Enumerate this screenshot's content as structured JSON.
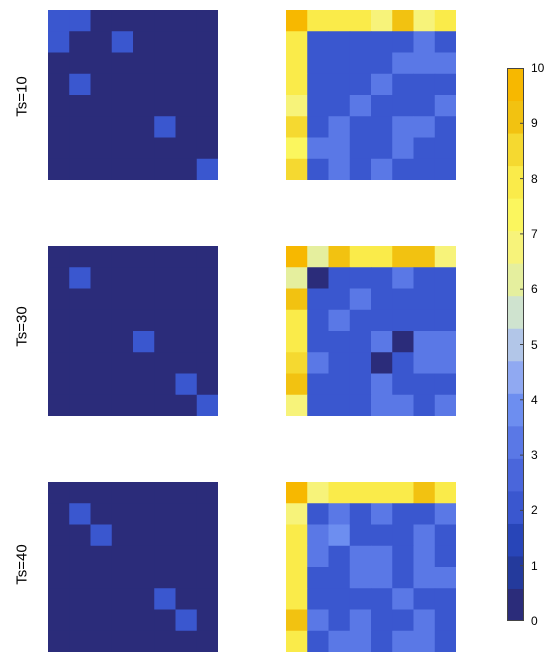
{
  "colors": {
    "scale": [
      "#2b2c7a",
      "#243a9c",
      "#2845b8",
      "#3a57cf",
      "#4a66db",
      "#5a78e6",
      "#6d8ef0",
      "#90a9f2",
      "#b2c6e8",
      "#cfe3cf",
      "#e5ef9e",
      "#f7f37a",
      "#fbf65e",
      "#faeb4a",
      "#f5d930",
      "#f2c211",
      "#f7b800"
    ]
  },
  "chart_data": {
    "type": "heatmap",
    "value_range": [
      0,
      10
    ],
    "colorbar_ticks": [
      "0",
      "1",
      "2",
      "3",
      "4",
      "5",
      "6",
      "7",
      "8",
      "9",
      "10"
    ],
    "row_labels": [
      "Ts=10",
      "Ts=30",
      "Ts=40"
    ],
    "panels": [
      {
        "row": 0,
        "col": 0,
        "values": [
          [
            1.8,
            1.8,
            0,
            0,
            0,
            0,
            0,
            0
          ],
          [
            1.8,
            0,
            0,
            1.8,
            0,
            0,
            0,
            0
          ],
          [
            0,
            0,
            0,
            0,
            0,
            0,
            0,
            0
          ],
          [
            0,
            1.8,
            0,
            0,
            0,
            0,
            0,
            0
          ],
          [
            0,
            0,
            0,
            0,
            0,
            0,
            0,
            0
          ],
          [
            0,
            0,
            0,
            0,
            0,
            1.8,
            0,
            0
          ],
          [
            0,
            0,
            0,
            0,
            0,
            0,
            0,
            0
          ],
          [
            0,
            0,
            0,
            0,
            0,
            0,
            0,
            1.8
          ]
        ]
      },
      {
        "row": 0,
        "col": 1,
        "values": [
          [
            9.5,
            8,
            8,
            8,
            7,
            9,
            7,
            8
          ],
          [
            8,
            2,
            2,
            2,
            2,
            2,
            3,
            2
          ],
          [
            8,
            2,
            2,
            2,
            2,
            3,
            3,
            3
          ],
          [
            8,
            2,
            2,
            2,
            3,
            2,
            2,
            2
          ],
          [
            6.5,
            2,
            2,
            3,
            2,
            2,
            2,
            3
          ],
          [
            8.5,
            2,
            3,
            2,
            2,
            3,
            3,
            2
          ],
          [
            7.5,
            3,
            3,
            2,
            2,
            3,
            2,
            2
          ],
          [
            8.5,
            2,
            3,
            2,
            3,
            2,
            2,
            2
          ]
        ]
      },
      {
        "row": 1,
        "col": 0,
        "values": [
          [
            0,
            0,
            0,
            0,
            0,
            0,
            0,
            0
          ],
          [
            0,
            1.8,
            0,
            0,
            0,
            0,
            0,
            0
          ],
          [
            0,
            0,
            0,
            0,
            0,
            0,
            0,
            0
          ],
          [
            0,
            0,
            0,
            0,
            0,
            0,
            0,
            0
          ],
          [
            0,
            0,
            0,
            0,
            1.8,
            0,
            0,
            0
          ],
          [
            0,
            0,
            0,
            0,
            0,
            0,
            0,
            0
          ],
          [
            0,
            0,
            0,
            0,
            0,
            0,
            1.8,
            0
          ],
          [
            0,
            0,
            0,
            0,
            0,
            0,
            0,
            2.2
          ]
        ]
      },
      {
        "row": 1,
        "col": 1,
        "values": [
          [
            9.5,
            6,
            9,
            8,
            8,
            9,
            9,
            7
          ],
          [
            6,
            0,
            2,
            2,
            2,
            3,
            2,
            2
          ],
          [
            9,
            2,
            2,
            3,
            2,
            2,
            2,
            2
          ],
          [
            8,
            2,
            3,
            2,
            2,
            2,
            2,
            2
          ],
          [
            8,
            2,
            2,
            2,
            3,
            0,
            3,
            3
          ],
          [
            8.5,
            3,
            2,
            2,
            0,
            2,
            3,
            3
          ],
          [
            9,
            2,
            2,
            2,
            3,
            2,
            2,
            2
          ],
          [
            7,
            2,
            2,
            2,
            3,
            3,
            2,
            3
          ]
        ]
      },
      {
        "row": 2,
        "col": 0,
        "values": [
          [
            0,
            0,
            0,
            0,
            0,
            0,
            0,
            0
          ],
          [
            0,
            1.8,
            0,
            0,
            0,
            0,
            0,
            0
          ],
          [
            0,
            0,
            1.8,
            0,
            0,
            0,
            0,
            0
          ],
          [
            0,
            0,
            0,
            0,
            0,
            0,
            0,
            0
          ],
          [
            0,
            0,
            0,
            0,
            0,
            0,
            0,
            0
          ],
          [
            0,
            0,
            0,
            0,
            0,
            1.8,
            0,
            0
          ],
          [
            0,
            0,
            0,
            0,
            0,
            0,
            1.8,
            0
          ],
          [
            0,
            0,
            0,
            0,
            0,
            0,
            0,
            0
          ]
        ]
      },
      {
        "row": 2,
        "col": 1,
        "values": [
          [
            9.5,
            7,
            8,
            8,
            8,
            8,
            9,
            8
          ],
          [
            7,
            2,
            3,
            2,
            3,
            2,
            2,
            3
          ],
          [
            8,
            3,
            4,
            2,
            2,
            2,
            3,
            2
          ],
          [
            8,
            3,
            2,
            3,
            3,
            2,
            3,
            2
          ],
          [
            8,
            2,
            2,
            3,
            3,
            2,
            3,
            3
          ],
          [
            8,
            2,
            2,
            2,
            2,
            3,
            2,
            2
          ],
          [
            9,
            3,
            2,
            3,
            2,
            2,
            3,
            2
          ],
          [
            8,
            2,
            3,
            3,
            2,
            3,
            3,
            2
          ]
        ]
      }
    ]
  }
}
